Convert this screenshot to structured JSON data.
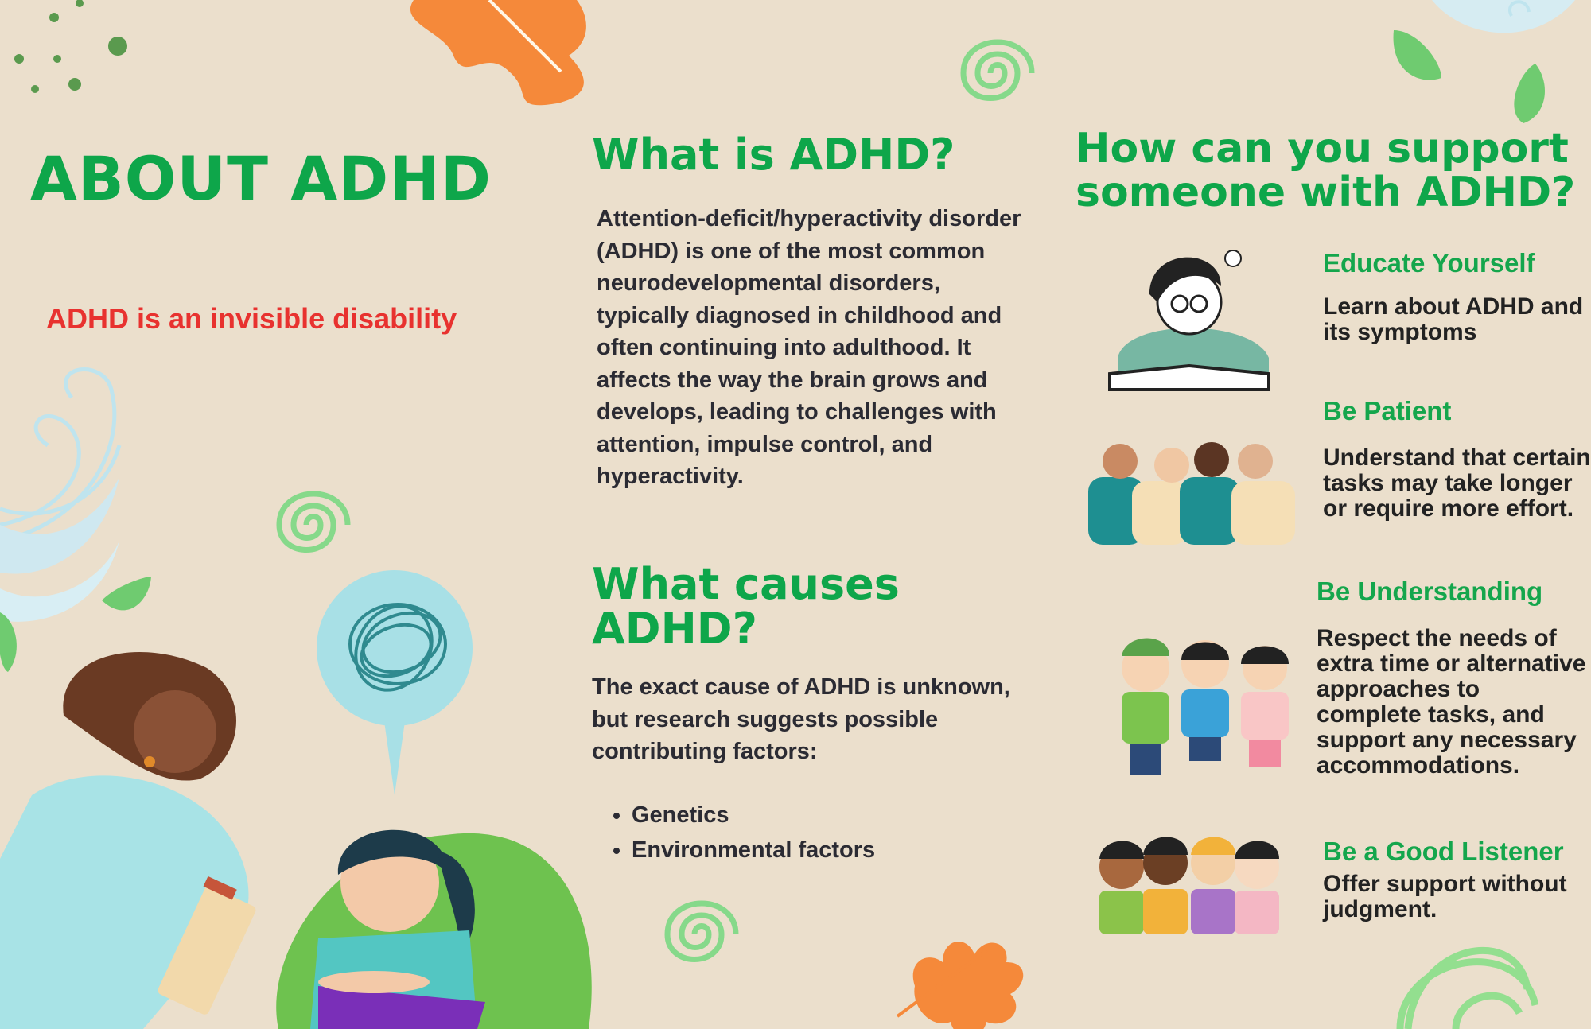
{
  "left": {
    "title": "ABOUT ADHD",
    "tagline": "ADHD is an invisible disability"
  },
  "middle": {
    "what_title": "What is ADHD?",
    "what_body": "Attention-deficit/hyperactivity disorder (ADHD) is one of the most common neurodevelopmental disorders, typically diagnosed in childhood and often continuing into adulthood. It affects the way the brain grows and develops, leading to challenges with attention, impulse control, and hyperactivity.",
    "causes_title_line1": "What causes",
    "causes_title_line2": "ADHD?",
    "causes_body": "The exact cause of ADHD is unknown, but research suggests possible contributing factors:",
    "causes_list": [
      "Genetics",
      "Environmental factors"
    ]
  },
  "right": {
    "title_line1": "How can you support",
    "title_line2": "someone with ADHD?",
    "tips": [
      {
        "heading": "Educate Yourself",
        "text": "Learn about ADHD and its symptoms"
      },
      {
        "heading": "Be Patient",
        "text": "Understand that certain tasks may take longer or require more effort."
      },
      {
        "heading": "Be Understanding",
        "text": "Respect the needs of extra time or alternative approaches to complete tasks, and support any necessary accommodations."
      },
      {
        "heading": "Be a Good Listener",
        "text": "Offer support without judgment."
      }
    ]
  },
  "colors": {
    "background": "#ebdfcc",
    "heading_green": "#0ea64a",
    "tagline_red": "#e8322f",
    "accent_orange": "#f5893a"
  },
  "icons": [
    "leaf-orange-icon",
    "spiral-green-icon",
    "leaf-green-icon",
    "swirl-blue-icon",
    "scribble-thought-icon"
  ]
}
